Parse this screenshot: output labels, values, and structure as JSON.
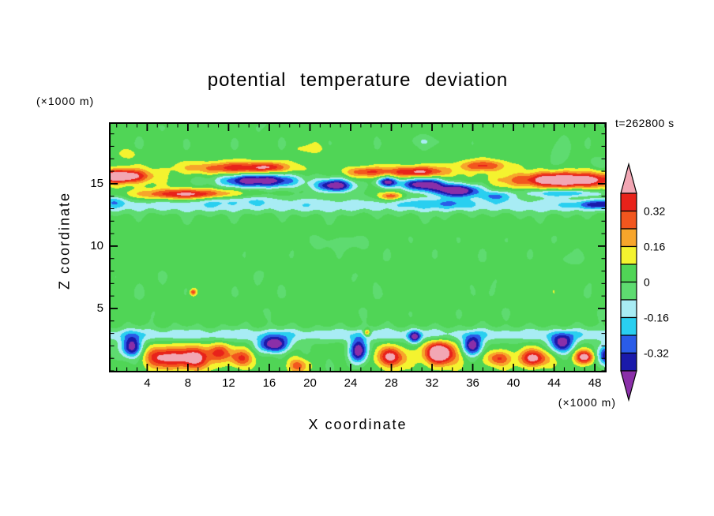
{
  "title": "potential temperature deviation",
  "timestamp": "t=262800 s",
  "y_axis": {
    "label": "Z coordinate",
    "unit": "(×1000 m)",
    "ticks": [
      5,
      10,
      15
    ]
  },
  "x_axis": {
    "label": "X coordinate",
    "unit": "(×1000 m)",
    "ticks": [
      4,
      8,
      12,
      16,
      20,
      24,
      28,
      32,
      36,
      40,
      44,
      48
    ]
  },
  "colorbar": {
    "labels": [
      "0.32",
      "0.16",
      "0",
      "-0.16",
      "-0.32"
    ],
    "outline_color": "#000000"
  },
  "chart_data": {
    "type": "heatmap",
    "title": "potential temperature deviation",
    "xlabel": "X coordinate (×1000 m)",
    "ylabel": "Z coordinate (×1000 m)",
    "time_label": "t=262800 s",
    "x_range": [
      0.4,
      49.0
    ],
    "z_range": [
      0.0,
      19.8
    ],
    "x_ticks": [
      4,
      8,
      12,
      16,
      20,
      24,
      28,
      32,
      36,
      40,
      44,
      48
    ],
    "z_ticks": [
      5,
      10,
      15
    ],
    "x_minor_step": 1,
    "z_minor_step": 1,
    "contour_levels": [
      -0.4,
      -0.32,
      -0.24,
      -0.16,
      -0.08,
      0,
      0.08,
      0.16,
      0.24,
      0.32,
      0.4
    ],
    "band_colors": [
      "#8A2FA8",
      "#1A1AAA",
      "#2A5CE8",
      "#29CFF0",
      "#A8ECF4",
      "#5EDB70",
      "#50D556",
      "#F4F32F",
      "#F7A52B",
      "#F2561E",
      "#E8221A",
      "#F2A7B4"
    ],
    "background_bias": 0.03,
    "noise": {
      "amp": 0.022
    },
    "bands": [
      {
        "z": 13.25,
        "sz": 0.62,
        "a": -0.16
      },
      {
        "z": 2.9,
        "sz": 0.55,
        "a": -0.16
      }
    ],
    "features": [
      {
        "x": 1.5,
        "z": 15.6,
        "sx": 2.6,
        "sz": 0.55,
        "a": 0.55
      },
      {
        "x": 8.0,
        "z": 14.15,
        "sx": 4.5,
        "sz": 0.42,
        "a": 0.42
      },
      {
        "x": 13.0,
        "z": 16.25,
        "sx": 5.0,
        "sz": 0.5,
        "a": 0.34
      },
      {
        "x": 15.8,
        "z": 16.35,
        "sx": 1.3,
        "sz": 0.35,
        "a": 0.17
      },
      {
        "x": 15.0,
        "z": 15.25,
        "sx": 3.6,
        "sz": 0.55,
        "a": -0.56
      },
      {
        "x": 22.5,
        "z": 14.85,
        "sx": 1.9,
        "sz": 0.5,
        "a": -0.5
      },
      {
        "x": 25.5,
        "z": 15.95,
        "sx": 2.0,
        "sz": 0.4,
        "a": 0.27
      },
      {
        "x": 27.6,
        "z": 15.15,
        "sx": 1.0,
        "sz": 0.4,
        "a": -0.42
      },
      {
        "x": 31.0,
        "z": 14.95,
        "sx": 2.2,
        "sz": 0.5,
        "a": -0.5
      },
      {
        "x": 34.5,
        "z": 14.45,
        "sx": 2.3,
        "sz": 0.5,
        "a": -0.55
      },
      {
        "x": 30.5,
        "z": 15.95,
        "sx": 3.0,
        "sz": 0.45,
        "a": 0.4
      },
      {
        "x": 37.0,
        "z": 16.45,
        "sx": 2.6,
        "sz": 0.45,
        "a": 0.28
      },
      {
        "x": 45.0,
        "z": 15.3,
        "sx": 5.0,
        "sz": 0.6,
        "a": 0.56
      },
      {
        "x": 38.2,
        "z": 14.0,
        "sx": 1.6,
        "sz": 0.4,
        "a": -0.25
      },
      {
        "x": 45.0,
        "z": 14.25,
        "sx": 3.8,
        "sz": 0.3,
        "a": -0.26
      },
      {
        "x": 48.6,
        "z": 13.35,
        "sx": 2.4,
        "sz": 0.35,
        "a": -0.28
      },
      {
        "x": 28.0,
        "z": 14.0,
        "sx": 1.1,
        "sz": 0.3,
        "a": 0.28
      },
      {
        "x": 0.8,
        "z": 13.6,
        "sx": 1.2,
        "sz": 0.4,
        "a": -0.12
      },
      {
        "x": 13.0,
        "z": 13.75,
        "sx": 4.0,
        "sz": 0.4,
        "a": -0.12
      },
      {
        "x": 33.0,
        "z": 13.45,
        "sx": 3.5,
        "sz": 0.4,
        "a": -0.12
      },
      {
        "x": 23.0,
        "z": 10.2,
        "sx": 2.4,
        "sz": 0.5,
        "a": -0.09
      },
      {
        "x": 45.5,
        "z": 9.0,
        "sx": 1.1,
        "sz": 0.45,
        "a": -0.08
      },
      {
        "x": 8.5,
        "z": 6.3,
        "sx": 0.3,
        "sz": 0.25,
        "a": 0.3
      },
      {
        "x": 2.0,
        "z": 17.4,
        "sx": 0.9,
        "sz": 0.35,
        "a": 0.11
      },
      {
        "x": 20.0,
        "z": 17.8,
        "sx": 1.3,
        "sz": 0.35,
        "a": 0.1
      },
      {
        "x": 31.0,
        "z": 18.4,
        "sx": 1.6,
        "sz": 0.5,
        "a": -0.1
      },
      {
        "x": 44.5,
        "z": 17.8,
        "sx": 0.9,
        "sz": 0.9,
        "a": -0.11
      },
      {
        "x": 48.5,
        "z": 16.7,
        "sx": 1.0,
        "sz": 0.45,
        "a": -0.09
      },
      {
        "x": 25.6,
        "z": 3.05,
        "sx": 0.35,
        "sz": 0.3,
        "a": 0.33
      },
      {
        "x": 5.5,
        "z": 1.1,
        "sx": 1.7,
        "sz": 0.85,
        "a": 0.4
      },
      {
        "x": 8.5,
        "z": 1.0,
        "sx": 1.7,
        "sz": 0.9,
        "a": 0.46
      },
      {
        "x": 11.0,
        "z": 1.5,
        "sx": 1.1,
        "sz": 0.7,
        "a": 0.3
      },
      {
        "x": 13.2,
        "z": 1.0,
        "sx": 1.2,
        "sz": 0.7,
        "a": 0.3
      },
      {
        "x": 18.8,
        "z": 0.4,
        "sx": 1.0,
        "sz": 0.6,
        "a": 0.26
      },
      {
        "x": 28.0,
        "z": 1.1,
        "sx": 1.4,
        "sz": 0.8,
        "a": 0.4
      },
      {
        "x": 32.8,
        "z": 1.4,
        "sx": 1.6,
        "sz": 0.95,
        "a": 0.56
      },
      {
        "x": 38.5,
        "z": 1.0,
        "sx": 1.1,
        "sz": 0.6,
        "a": 0.3
      },
      {
        "x": 42.0,
        "z": 1.0,
        "sx": 1.5,
        "sz": 0.7,
        "a": 0.42
      },
      {
        "x": 47.0,
        "z": 1.1,
        "sx": 0.9,
        "sz": 0.55,
        "a": 0.46
      },
      {
        "x": 2.5,
        "z": 1.9,
        "sx": 1.0,
        "sz": 0.85,
        "a": -0.5
      },
      {
        "x": 16.5,
        "z": 2.1,
        "sx": 1.5,
        "sz": 0.65,
        "a": -0.52
      },
      {
        "x": 24.8,
        "z": 1.6,
        "sx": 0.9,
        "sz": 1.0,
        "a": -0.5
      },
      {
        "x": 30.3,
        "z": 2.7,
        "sx": 0.6,
        "sz": 0.5,
        "a": -0.38
      },
      {
        "x": 36.0,
        "z": 2.0,
        "sx": 1.0,
        "sz": 0.75,
        "a": -0.5
      },
      {
        "x": 44.8,
        "z": 2.2,
        "sx": 1.2,
        "sz": 0.75,
        "a": -0.45
      },
      {
        "x": 49.2,
        "z": 1.2,
        "sx": 1.0,
        "sz": 0.85,
        "a": -0.45
      }
    ]
  }
}
